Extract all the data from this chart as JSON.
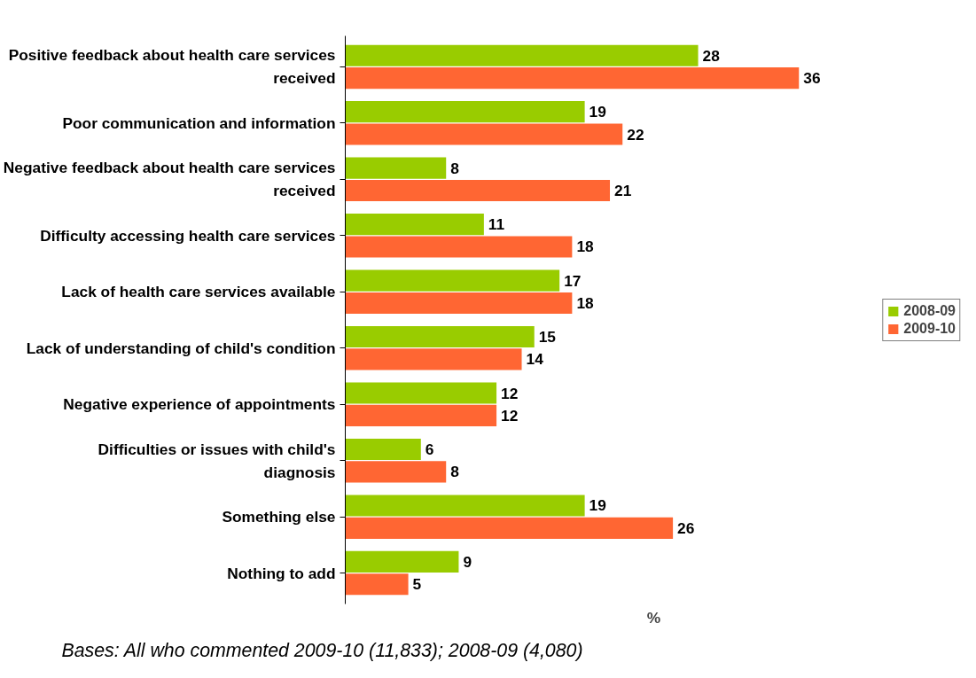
{
  "chart_data": {
    "type": "bar",
    "orientation": "horizontal",
    "xlabel": "%",
    "categories": [
      "Positive feedback about health care services received",
      "Poor communication and information",
      "Negative feedback about health care services received",
      "Difficulty accessing health care services",
      "Lack of health care services available",
      "Lack of understanding of child's condition",
      "Negative experience of appointments",
      "Difficulties or issues with child's diagnosis",
      "Something else",
      "Nothing to add"
    ],
    "series": [
      {
        "name": "2008-09",
        "color": "#99cc00",
        "values": [
          28,
          19,
          8,
          11,
          17,
          15,
          12,
          6,
          19,
          9
        ]
      },
      {
        "name": "2009-10",
        "color": "#ff6633",
        "values": [
          36,
          22,
          21,
          18,
          18,
          14,
          12,
          8,
          26,
          5
        ]
      }
    ],
    "data_labels": true,
    "legend": "right",
    "grid": false,
    "tick_labels": "y",
    "annotations": [
      "Bases: All who commented 2009-10 (11,833); 2008-09 (4,080)"
    ]
  }
}
